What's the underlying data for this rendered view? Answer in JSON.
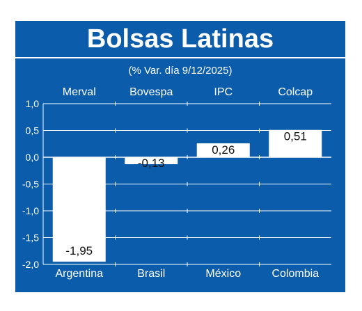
{
  "title": "Bolsas Latinas",
  "subtitle": "(% Var. día 9/12/2025)",
  "colors": {
    "background": "#0b5cab",
    "bar": "#ffffff",
    "grid": "#ffffff",
    "text": "#ffffff"
  },
  "chart_data": {
    "type": "bar",
    "index_names": [
      "Merval",
      "Bovespa",
      "IPC",
      "Colcap"
    ],
    "categories": [
      "Argentina",
      "Brasil",
      "México",
      "Colombia"
    ],
    "values": [
      -1.95,
      -0.13,
      0.26,
      0.51
    ],
    "value_labels": [
      "-1,95",
      "-0,13",
      "0,26",
      "0,51"
    ],
    "yticks": [
      1.0,
      0.5,
      0.0,
      -0.5,
      -1.0,
      -1.5,
      -2.0
    ],
    "ytick_labels": [
      "1,0",
      "0,5",
      "0,0",
      "-0,5",
      "-1,0",
      "-1,5",
      "-2,0"
    ],
    "ylim": [
      -2.0,
      1.0
    ],
    "grid": true
  }
}
